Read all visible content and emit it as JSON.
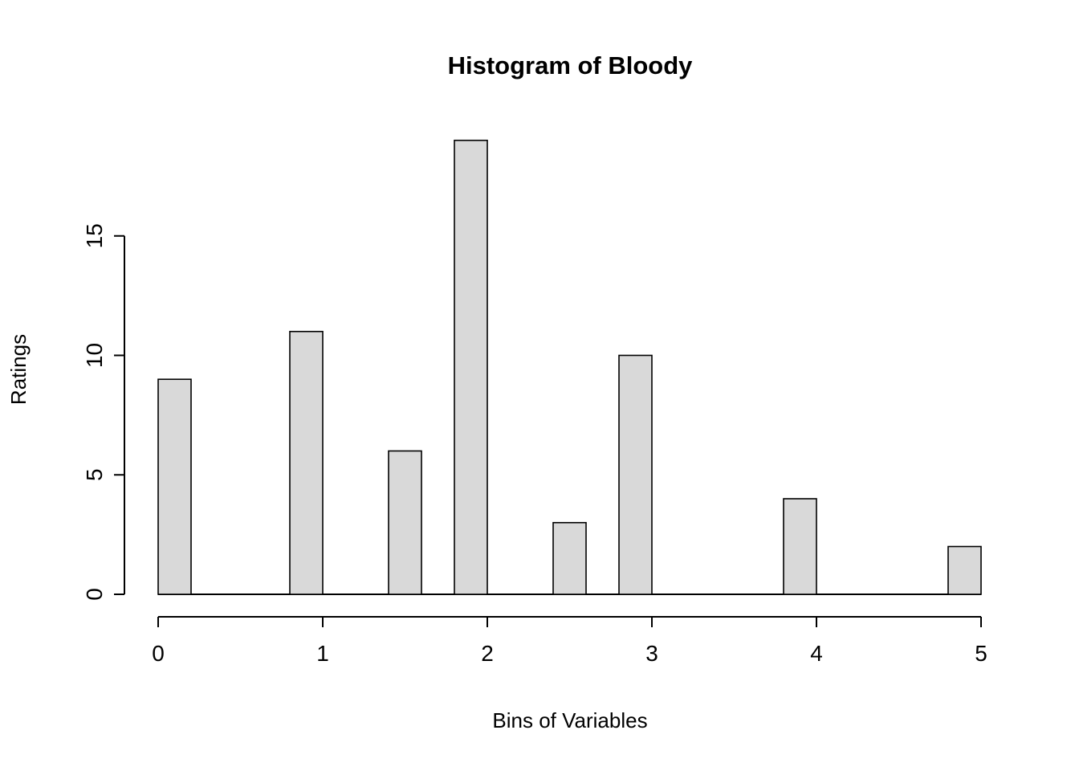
{
  "chart_data": {
    "type": "bar",
    "title": "Histogram of Bloody",
    "xlabel": "Bins of Variables",
    "ylabel": "Ratings",
    "xlim": [
      0,
      5
    ],
    "ylim": [
      0,
      19
    ],
    "x_ticks": [
      0,
      1,
      2,
      3,
      4,
      5
    ],
    "y_ticks": [
      0,
      5,
      10,
      15
    ],
    "bin_width": 0.2,
    "bars": [
      {
        "x_start": 0.0,
        "x_end": 0.2,
        "count": 9
      },
      {
        "x_start": 0.8,
        "x_end": 1.0,
        "count": 11
      },
      {
        "x_start": 1.4,
        "x_end": 1.6,
        "count": 6
      },
      {
        "x_start": 1.8,
        "x_end": 2.0,
        "count": 19
      },
      {
        "x_start": 2.4,
        "x_end": 2.6,
        "count": 3
      },
      {
        "x_start": 2.8,
        "x_end": 3.0,
        "count": 10
      },
      {
        "x_start": 3.8,
        "x_end": 4.0,
        "count": 4
      },
      {
        "x_start": 4.8,
        "x_end": 5.0,
        "count": 2
      }
    ],
    "grid": false,
    "legend": false,
    "colors": {
      "bar_fill": "#d9d9d9",
      "bar_stroke": "#000000",
      "axis": "#000000",
      "background": "#ffffff"
    }
  }
}
